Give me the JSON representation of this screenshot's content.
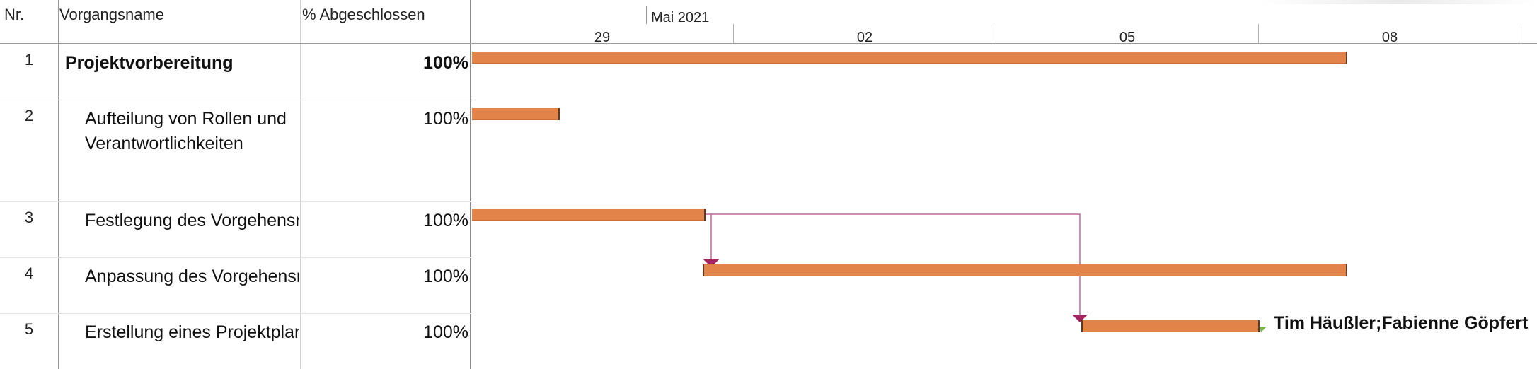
{
  "columns": {
    "nr": "Nr.",
    "name": "Vorgangsname",
    "percent": "% Abgeschlossen"
  },
  "timescale": {
    "top": [
      {
        "label": "Mai 2021"
      }
    ],
    "bottom": [
      {
        "label": "29"
      },
      {
        "label": "02"
      },
      {
        "label": "05"
      },
      {
        "label": "08"
      }
    ]
  },
  "tasks": [
    {
      "nr": "1",
      "name": "Projektvorbereitung",
      "percent": "100%",
      "summary": true
    },
    {
      "nr": "2",
      "name": "Aufteilung von Rollen und Verantwortlichkeiten",
      "percent": "100%",
      "summary": false
    },
    {
      "nr": "3",
      "name": "Festlegung des Vorgehensmodells",
      "percent": "100%",
      "summary": false
    },
    {
      "nr": "4",
      "name": "Anpassung des Vorgehensmodells",
      "percent": "100%",
      "summary": false
    },
    {
      "nr": "5",
      "name": "Erstellung eines Projektplans",
      "percent": "100%",
      "summary": false,
      "resources": "Tim Häußler;Fabienne Göpfert"
    }
  ],
  "colors": {
    "bar": "#e2834a",
    "link": "#c0669a",
    "arrow": "#a3245e"
  }
}
